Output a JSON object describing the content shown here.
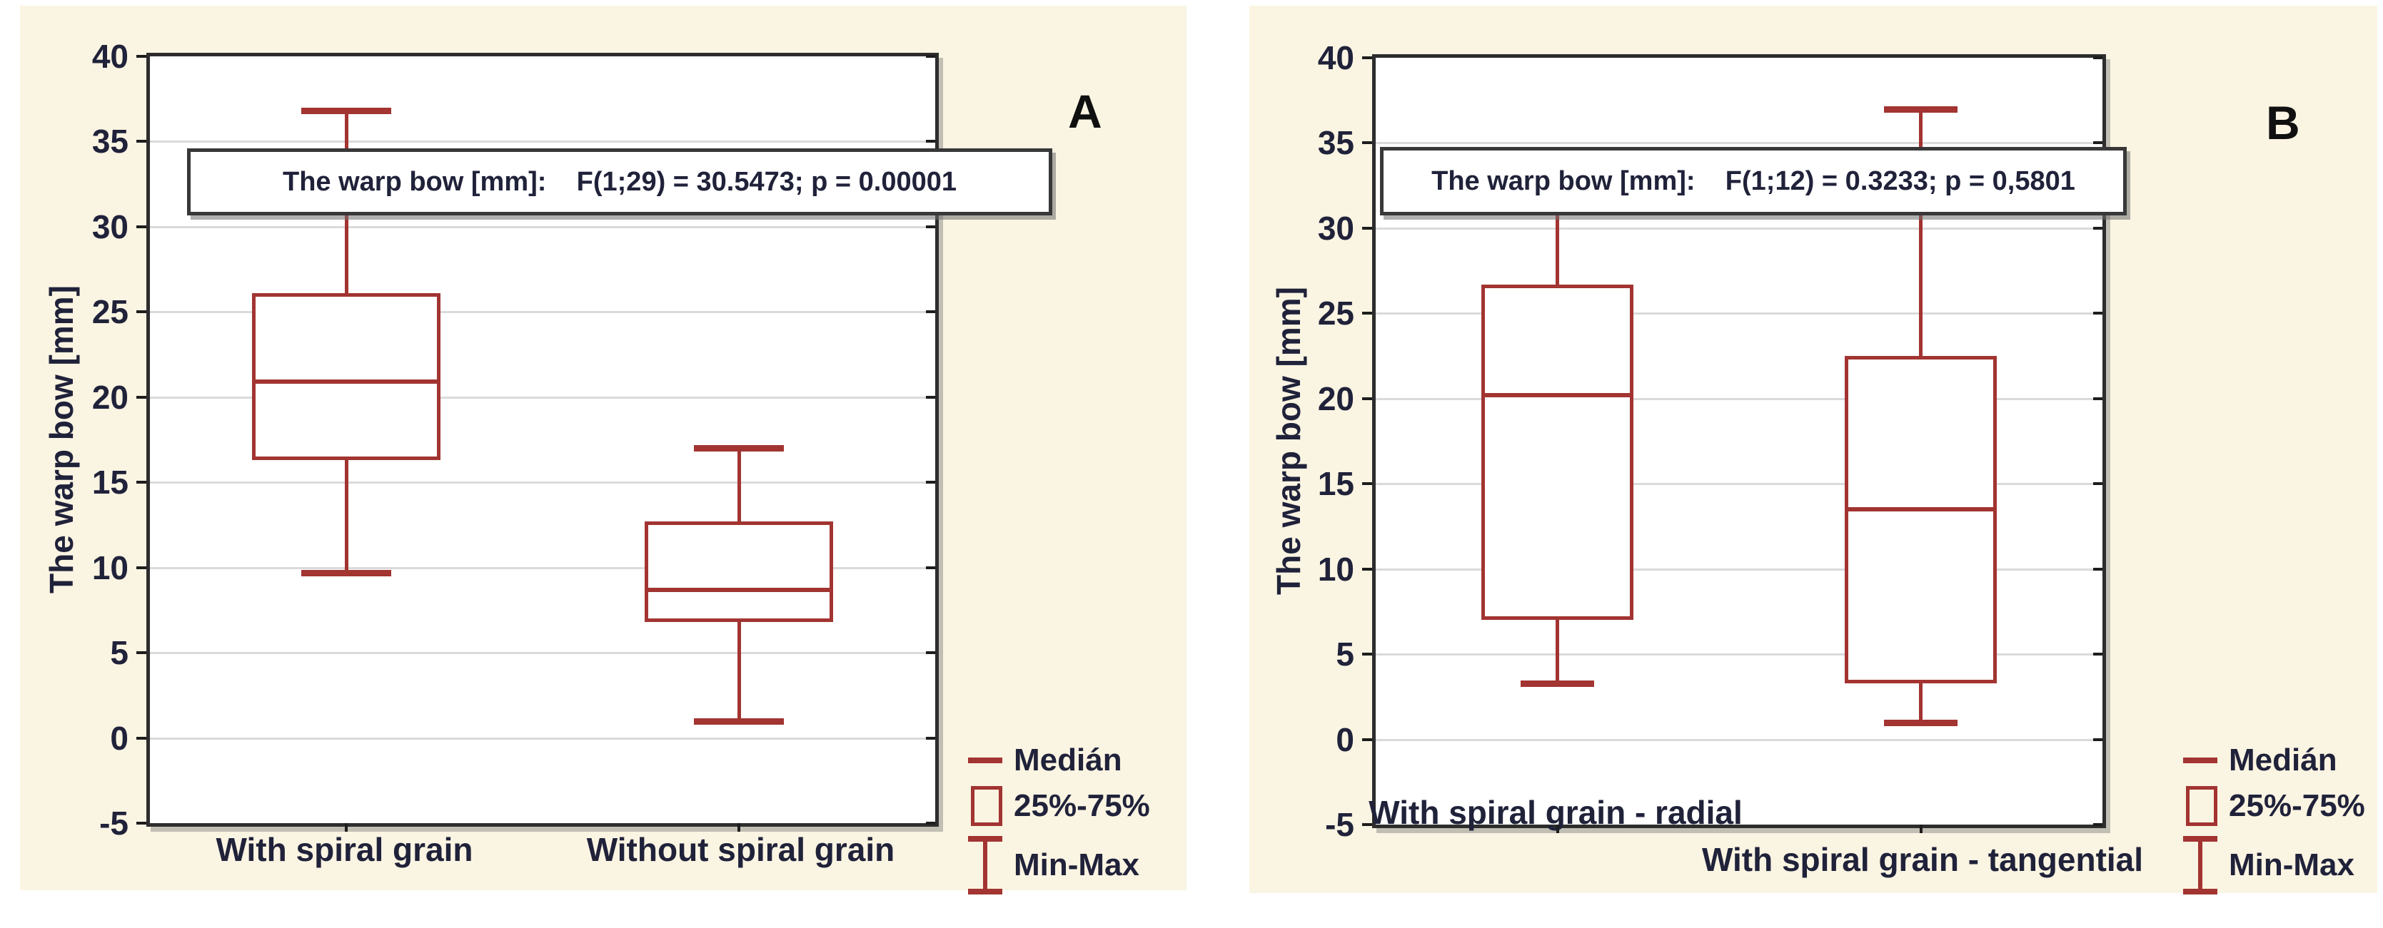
{
  "colors": {
    "panel_background": "#faf4e2",
    "plot_background": "#ffffff",
    "box_red": "#a23431",
    "frame": "#2d2d2d",
    "gridline": "#dadada",
    "text": "#20223a"
  },
  "chart_data": [
    {
      "type": "box",
      "panel_tag": "A",
      "title": "The warp bow [mm]:    F(1;29) = 30.5473; p = 0.00001",
      "ylabel": "The warp bow [mm]",
      "ylim": [
        -5,
        40
      ],
      "yticks": [
        40,
        35,
        30,
        25,
        20,
        15,
        10,
        5,
        0,
        -5
      ],
      "grid": true,
      "categories": [
        "With spiral grain",
        "Without spiral grain"
      ],
      "series": [
        {
          "category": "With spiral grain",
          "min": 9.7,
          "q1": 16.3,
          "median": 20.9,
          "q3": 26.1,
          "max": 36.8
        },
        {
          "category": "Without spiral grain",
          "min": 1.0,
          "q1": 6.8,
          "median": 8.7,
          "q3": 12.7,
          "max": 17.0
        }
      ],
      "legend": {
        "position": "bottom-right",
        "entries": [
          "Medián",
          "25%-75%",
          "Min-Max"
        ]
      }
    },
    {
      "type": "box",
      "panel_tag": "B",
      "title": "The warp bow [mm]:    F(1;12) = 0.3233; p = 0,5801",
      "ylabel": "The warp bow [mm]",
      "ylim": [
        -5,
        40
      ],
      "yticks": [
        40,
        35,
        30,
        25,
        20,
        15,
        10,
        5,
        0,
        -5
      ],
      "grid": true,
      "categories": [
        "With spiral grain - radial",
        "With spiral grain - tangential"
      ],
      "series": [
        {
          "category": "With spiral grain - radial",
          "min": 3.3,
          "q1": 7.0,
          "median": 20.2,
          "q3": 26.7,
          "max": 32.5
        },
        {
          "category": "With spiral grain - tangential",
          "min": 1.0,
          "q1": 3.3,
          "median": 13.5,
          "q3": 22.5,
          "max": 37.0
        }
      ],
      "legend": {
        "position": "bottom-right",
        "entries": [
          "Medián",
          "25%-75%",
          "Min-Max"
        ]
      }
    }
  ]
}
